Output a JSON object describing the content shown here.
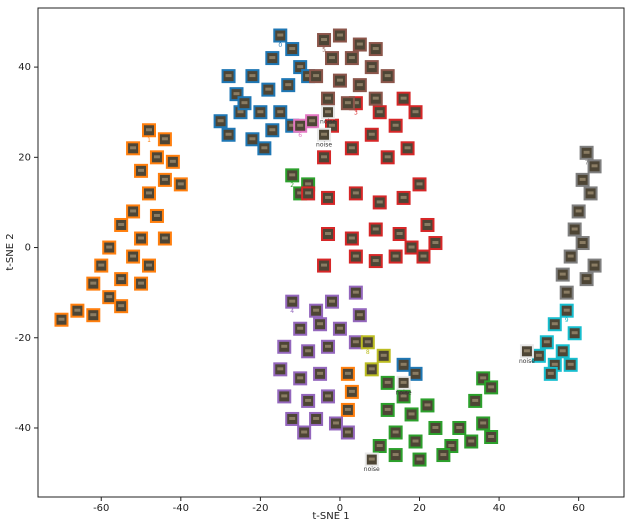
{
  "chart_data": {
    "type": "scatter",
    "xlabel": "t-SNE 1",
    "ylabel": "t-SNE 2",
    "xlim": [
      -75.9,
      71.4
    ],
    "ylim": [
      -55.3,
      53.1
    ],
    "xticks": [
      -60,
      -40,
      -20,
      0,
      20,
      40,
      60
    ],
    "yticks": [
      -40,
      -20,
      0,
      20,
      40
    ],
    "grid": false,
    "series": [
      {
        "name": "0",
        "color": "#1f77b4",
        "x": [
          -15,
          -12,
          -17,
          -10,
          -28,
          -22,
          -26,
          -18,
          -13,
          -8,
          -30,
          -25,
          -20,
          -15,
          -28,
          -22,
          -17,
          -12,
          -19,
          -24,
          16,
          19
        ],
        "values": [
          47,
          44,
          42,
          40,
          38,
          38,
          34,
          35,
          36,
          38,
          28,
          30,
          30,
          30,
          25,
          24,
          26,
          27,
          22,
          32,
          -26,
          -28
        ]
      },
      {
        "name": "1",
        "color": "#ff7f0e",
        "x": [
          -48,
          -44,
          -52,
          -46,
          -42,
          -50,
          -44,
          -48,
          -40,
          -52,
          -46,
          -55,
          -50,
          -44,
          -58,
          -52,
          -48,
          -60,
          -55,
          -62,
          -50,
          -58,
          -66,
          -70,
          -62,
          -55,
          2,
          3,
          2
        ],
        "values": [
          26,
          24,
          22,
          20,
          19,
          17,
          15,
          12,
          14,
          8,
          7,
          5,
          2,
          2,
          0,
          -2,
          -4,
          -4,
          -7,
          -8,
          -8,
          -11,
          -14,
          -16,
          -15,
          -13,
          -28,
          -32,
          -36
        ]
      },
      {
        "name": "2",
        "color": "#2ca02c",
        "x": [
          -12,
          -8,
          -10,
          12,
          16,
          12,
          18,
          22,
          14,
          19,
          24,
          28,
          33,
          36,
          34,
          36,
          38,
          26,
          20,
          14,
          10,
          30,
          38
        ],
        "values": [
          16,
          14,
          12,
          -30,
          -33,
          -36,
          -37,
          -35,
          -41,
          -43,
          -40,
          -44,
          -43,
          -39,
          -34,
          -29,
          -31,
          -46,
          -47,
          -46,
          -44,
          -40,
          -42
        ]
      },
      {
        "name": "3",
        "color": "#d62728",
        "x": [
          4,
          10,
          16,
          19,
          14,
          8,
          -2,
          3,
          -4,
          12,
          17,
          -8,
          -3,
          4,
          10,
          16,
          20,
          -3,
          3,
          9,
          15,
          22,
          24,
          18,
          4,
          9,
          -4,
          14,
          21
        ],
        "values": [
          32,
          30,
          33,
          30,
          27,
          25,
          27,
          22,
          20,
          20,
          22,
          12,
          11,
          12,
          10,
          11,
          14,
          3,
          2,
          4,
          3,
          5,
          1,
          0,
          -2,
          -3,
          -4,
          -2,
          -2
        ]
      },
      {
        "name": "4",
        "color": "#9467bd",
        "x": [
          -12,
          -6,
          -2,
          4,
          -10,
          -5,
          0,
          5,
          -14,
          -8,
          -3,
          4,
          -15,
          -10,
          -5,
          -14,
          -8,
          -3,
          -12,
          -6,
          -1,
          -9,
          2
        ],
        "values": [
          -12,
          -14,
          -12,
          -10,
          -18,
          -17,
          -18,
          -15,
          -22,
          -23,
          -22,
          -21,
          -27,
          -29,
          -28,
          -33,
          -34,
          -33,
          -38,
          -38,
          -39,
          -41,
          -41
        ]
      },
      {
        "name": "5",
        "color": "#8c564b",
        "x": [
          -4,
          0,
          5,
          9,
          -2,
          3,
          8,
          12,
          -6,
          0,
          5,
          -3,
          2,
          9
        ],
        "values": [
          46,
          47,
          45,
          44,
          42,
          42,
          40,
          38,
          38,
          37,
          36,
          33,
          32,
          33
        ]
      },
      {
        "name": "6",
        "color": "#e377c2",
        "x": [
          -10,
          -7
        ],
        "values": [
          27,
          28
        ]
      },
      {
        "name": "7",
        "color": "#7f7f7f",
        "x": [
          62,
          64,
          61,
          63,
          60,
          59,
          61,
          58,
          64,
          56,
          62,
          57
        ],
        "values": [
          21,
          18,
          15,
          12,
          8,
          4,
          1,
          -2,
          -4,
          -6,
          -7,
          -10
        ]
      },
      {
        "name": "8",
        "color": "#bcbd22",
        "x": [
          7,
          11,
          8
        ],
        "values": [
          -21,
          -24,
          -27
        ]
      },
      {
        "name": "9",
        "color": "#17becf",
        "x": [
          57,
          54,
          59,
          52,
          56,
          50,
          54,
          58,
          53
        ],
        "values": [
          -14,
          -17,
          -19,
          -21,
          -23,
          -24,
          -26,
          -26,
          -28
        ]
      },
      {
        "name": "noise",
        "color": "#e8e8e8",
        "x": [
          -4,
          47,
          8,
          16,
          -3
        ],
        "values": [
          25,
          -23,
          -47,
          -30,
          30
        ]
      }
    ]
  }
}
